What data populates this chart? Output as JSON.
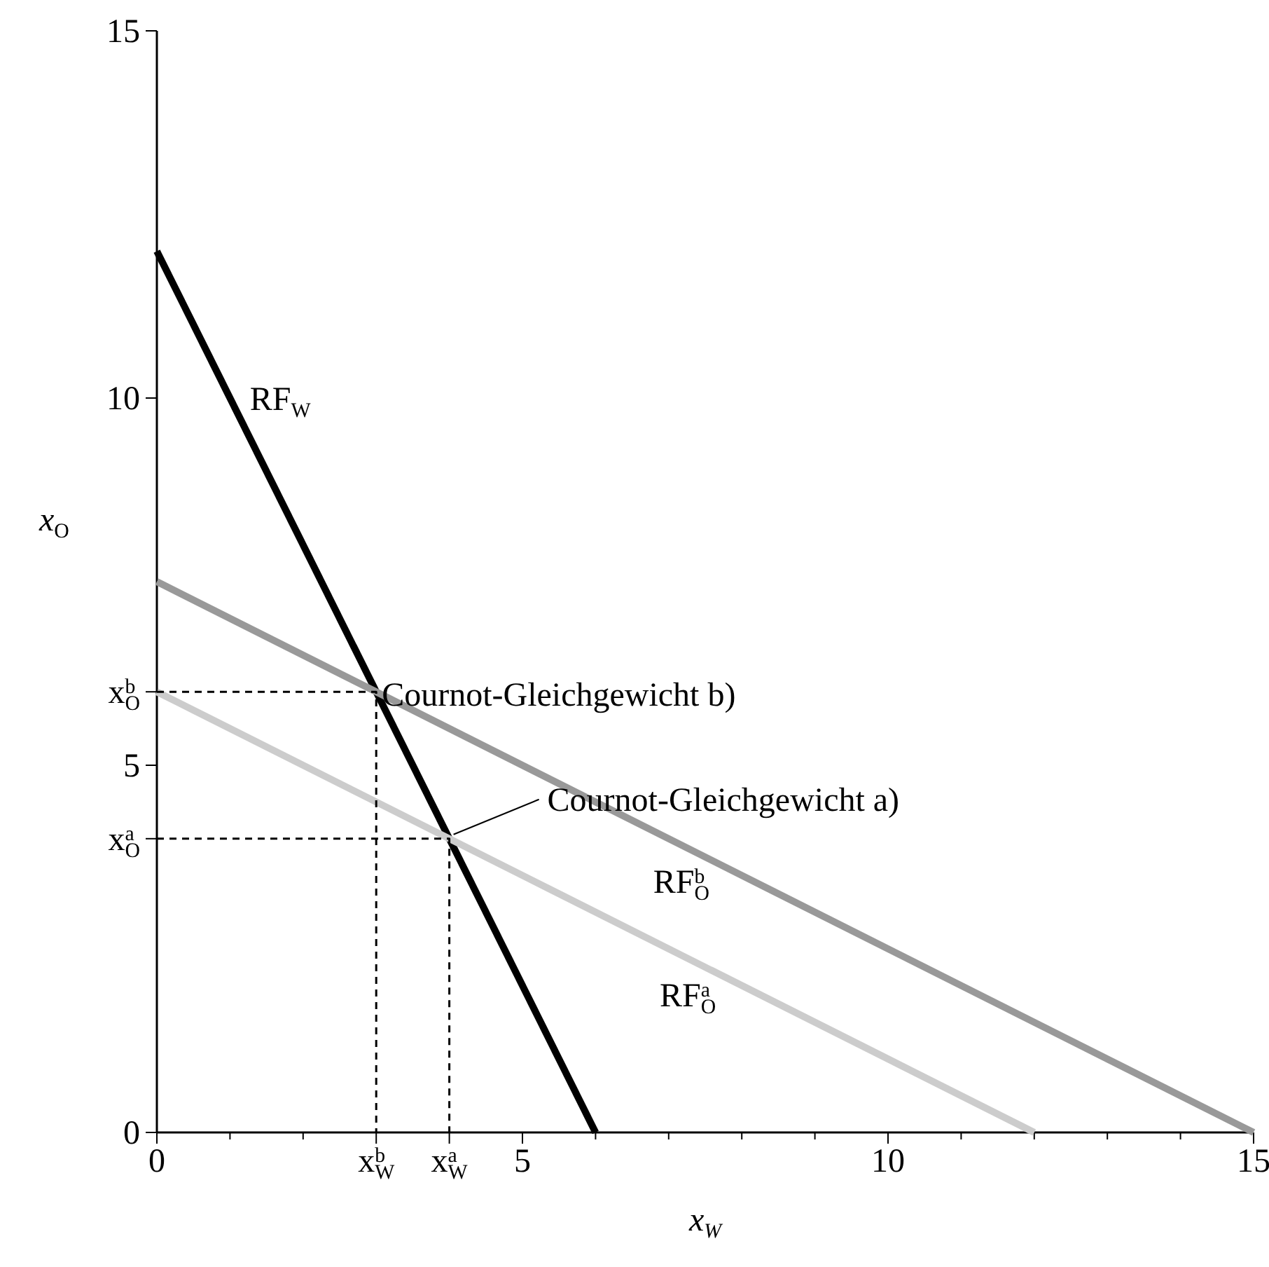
{
  "chart_data": {
    "type": "line",
    "xlabel": "x$_{W}$",
    "ylabel": "x$_{O}$",
    "xlim": [
      0,
      15
    ],
    "ylim": [
      0,
      15
    ],
    "xticks": [
      0,
      {
        "value": 1,
        "label": null
      },
      {
        "value": 2,
        "label": null
      },
      {
        "value": 3,
        "label": "x$^{b}$$_{W}$"
      },
      {
        "value": 4,
        "label": "x$^{a}$$_{W}$"
      },
      5,
      {
        "value": 6,
        "label": null
      },
      {
        "value": 7,
        "label": null
      },
      {
        "value": 8,
        "label": null
      },
      {
        "value": 9,
        "label": null
      },
      10,
      {
        "value": 11,
        "label": null
      },
      {
        "value": 12,
        "label": null
      },
      {
        "value": 13,
        "label": null
      },
      {
        "value": 14,
        "label": null
      },
      15
    ],
    "yticks": [
      0,
      {
        "value": 4,
        "label": "x$^{a}$$_{O}$"
      },
      5,
      {
        "value": 6,
        "label": "x$^{b}$$_{O}$"
      },
      10,
      15
    ],
    "grid": false,
    "marker": "none",
    "series": [
      {
        "name": "RF$_{W}$",
        "color": "#000000",
        "x": [
          0,
          6
        ],
        "values": [
          12,
          0
        ],
        "line_style": "solid"
      },
      {
        "name": "RF$^{b}$$_{O}$",
        "color": "#999999",
        "x": [
          0,
          15
        ],
        "values": [
          7.5,
          0
        ],
        "line_style": "solid"
      },
      {
        "name": "RF$^{a}$$_{O}$",
        "color": "#cccccc",
        "x": [
          0,
          12
        ],
        "values": [
          6,
          0
        ],
        "line_style": "solid"
      },
      {
        "color": "#000000",
        "x": [
          0,
          3,
          3
        ],
        "values": [
          6,
          6,
          0
        ],
        "line_style": "dashed"
      },
      {
        "color": "#000000",
        "x": [
          0,
          4,
          4
        ],
        "values": [
          4,
          4,
          0
        ],
        "line_style": "dashed"
      }
    ],
    "annotations": [
      {
        "text": "Cournot-Gleichgewicht b)",
        "x": 3,
        "y": 6
      },
      {
        "text": "Cournot-Gleichgewicht a)",
        "x": 4,
        "y": 4
      }
    ]
  }
}
